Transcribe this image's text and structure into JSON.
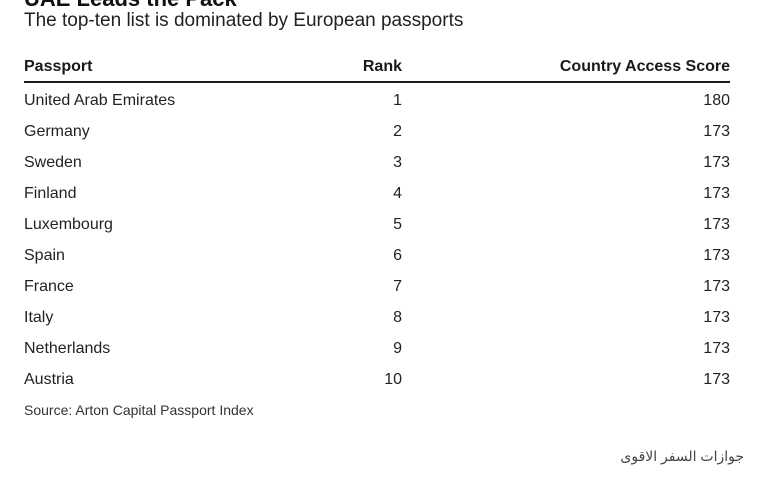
{
  "header": {
    "title_partial": "UAE Leads the Pack",
    "subtitle": "The top-ten list is dominated by European passports"
  },
  "chart_data": {
    "type": "table",
    "columns": [
      "Passport",
      "Rank",
      "Country Access Score"
    ],
    "rows": [
      {
        "passport": "United Arab Emirates",
        "rank": "1",
        "score": "180"
      },
      {
        "passport": "Germany",
        "rank": "2",
        "score": "173"
      },
      {
        "passport": "Sweden",
        "rank": "3",
        "score": "173"
      },
      {
        "passport": "Finland",
        "rank": "4",
        "score": "173"
      },
      {
        "passport": "Luxembourg",
        "rank": "5",
        "score": "173"
      },
      {
        "passport": "Spain",
        "rank": "6",
        "score": "173"
      },
      {
        "passport": "France",
        "rank": "7",
        "score": "173"
      },
      {
        "passport": "Italy",
        "rank": "8",
        "score": "173"
      },
      {
        "passport": "Netherlands",
        "rank": "9",
        "score": "173"
      },
      {
        "passport": "Austria",
        "rank": "10",
        "score": "173"
      }
    ]
  },
  "footer": {
    "source": "Source: Arton Capital Passport Index",
    "watermark": "جوازات السفر الاقوى"
  }
}
